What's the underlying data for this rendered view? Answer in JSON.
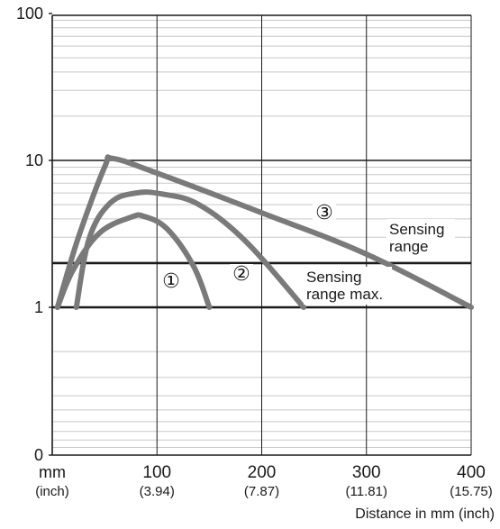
{
  "chart_data": {
    "type": "line",
    "xlabel": "Distance in mm (inch)",
    "x_ticks": [
      {
        "value": 100,
        "label": "100",
        "sublabel": "(3.94)"
      },
      {
        "value": 200,
        "label": "200",
        "sublabel": "(7.87)"
      },
      {
        "value": 300,
        "label": "300",
        "sublabel": "(11.81)"
      },
      {
        "value": 400,
        "label": "400",
        "sublabel": "(15.75)"
      }
    ],
    "x_unit_label": "mm",
    "x_unit_sublabel": "(inch)",
    "xlim": [
      0,
      400
    ],
    "y_ticks": [
      {
        "value": 100,
        "label": "100"
      },
      {
        "value": 10,
        "label": "10"
      },
      {
        "value": 1,
        "label": "1"
      },
      {
        "value": 0,
        "label": "0"
      }
    ],
    "y_scale": "log-decades",
    "grid": true,
    "series": [
      {
        "marker": "①",
        "x": [
          5,
          20,
          45,
          75,
          88,
          110,
          135,
          150
        ],
        "y": [
          1,
          1.8,
          3.2,
          4.1,
          4.15,
          3.4,
          1.9,
          1
        ]
      },
      {
        "marker": "②",
        "x": [
          23,
          35,
          55,
          80,
          105,
          140,
          185,
          240
        ],
        "y": [
          1,
          2.9,
          5.1,
          6,
          5.9,
          5,
          2.8,
          1
        ]
      },
      {
        "marker": "③",
        "x": [
          5,
          25,
          50,
          58,
          100,
          200,
          300,
          400
        ],
        "y": [
          1,
          3,
          9,
          10.3,
          8.2,
          4.4,
          2.3,
          1
        ]
      }
    ],
    "reference_lines": [
      {
        "y": 2,
        "label": [
          "Sensing",
          "range"
        ]
      },
      {
        "y": 1,
        "label": [
          "Sensing",
          "range max."
        ]
      }
    ]
  }
}
